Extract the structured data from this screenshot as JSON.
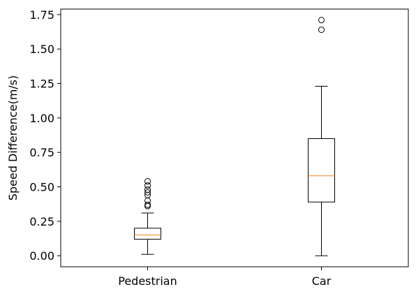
{
  "chart_data": {
    "type": "box",
    "ylabel": "Speed Difference(m/s)",
    "xlabel": "",
    "title": "",
    "ylim": [
      -0.08,
      1.79
    ],
    "yticks": [
      0.0,
      0.25,
      0.5,
      0.75,
      1.0,
      1.25,
      1.5,
      1.75
    ],
    "ytick_labels": [
      "0.00",
      "0.25",
      "0.50",
      "0.75",
      "1.00",
      "1.25",
      "1.50",
      "1.75"
    ],
    "grid": false,
    "boxes": [
      {
        "label": "Pedestrian",
        "whisker_low": 0.01,
        "q1": 0.12,
        "median": 0.15,
        "q3": 0.2,
        "whisker_high": 0.31,
        "outliers": [
          0.36,
          0.37,
          0.4,
          0.44,
          0.46,
          0.48,
          0.51,
          0.54
        ]
      },
      {
        "label": "Car",
        "whisker_low": 0.0,
        "q1": 0.39,
        "median": 0.58,
        "q3": 0.85,
        "whisker_high": 1.23,
        "outliers": [
          1.64,
          1.71
        ]
      }
    ],
    "colors": {
      "box": "#000000",
      "median": "#ff7f0e",
      "outlier_edge": "#000000"
    }
  }
}
